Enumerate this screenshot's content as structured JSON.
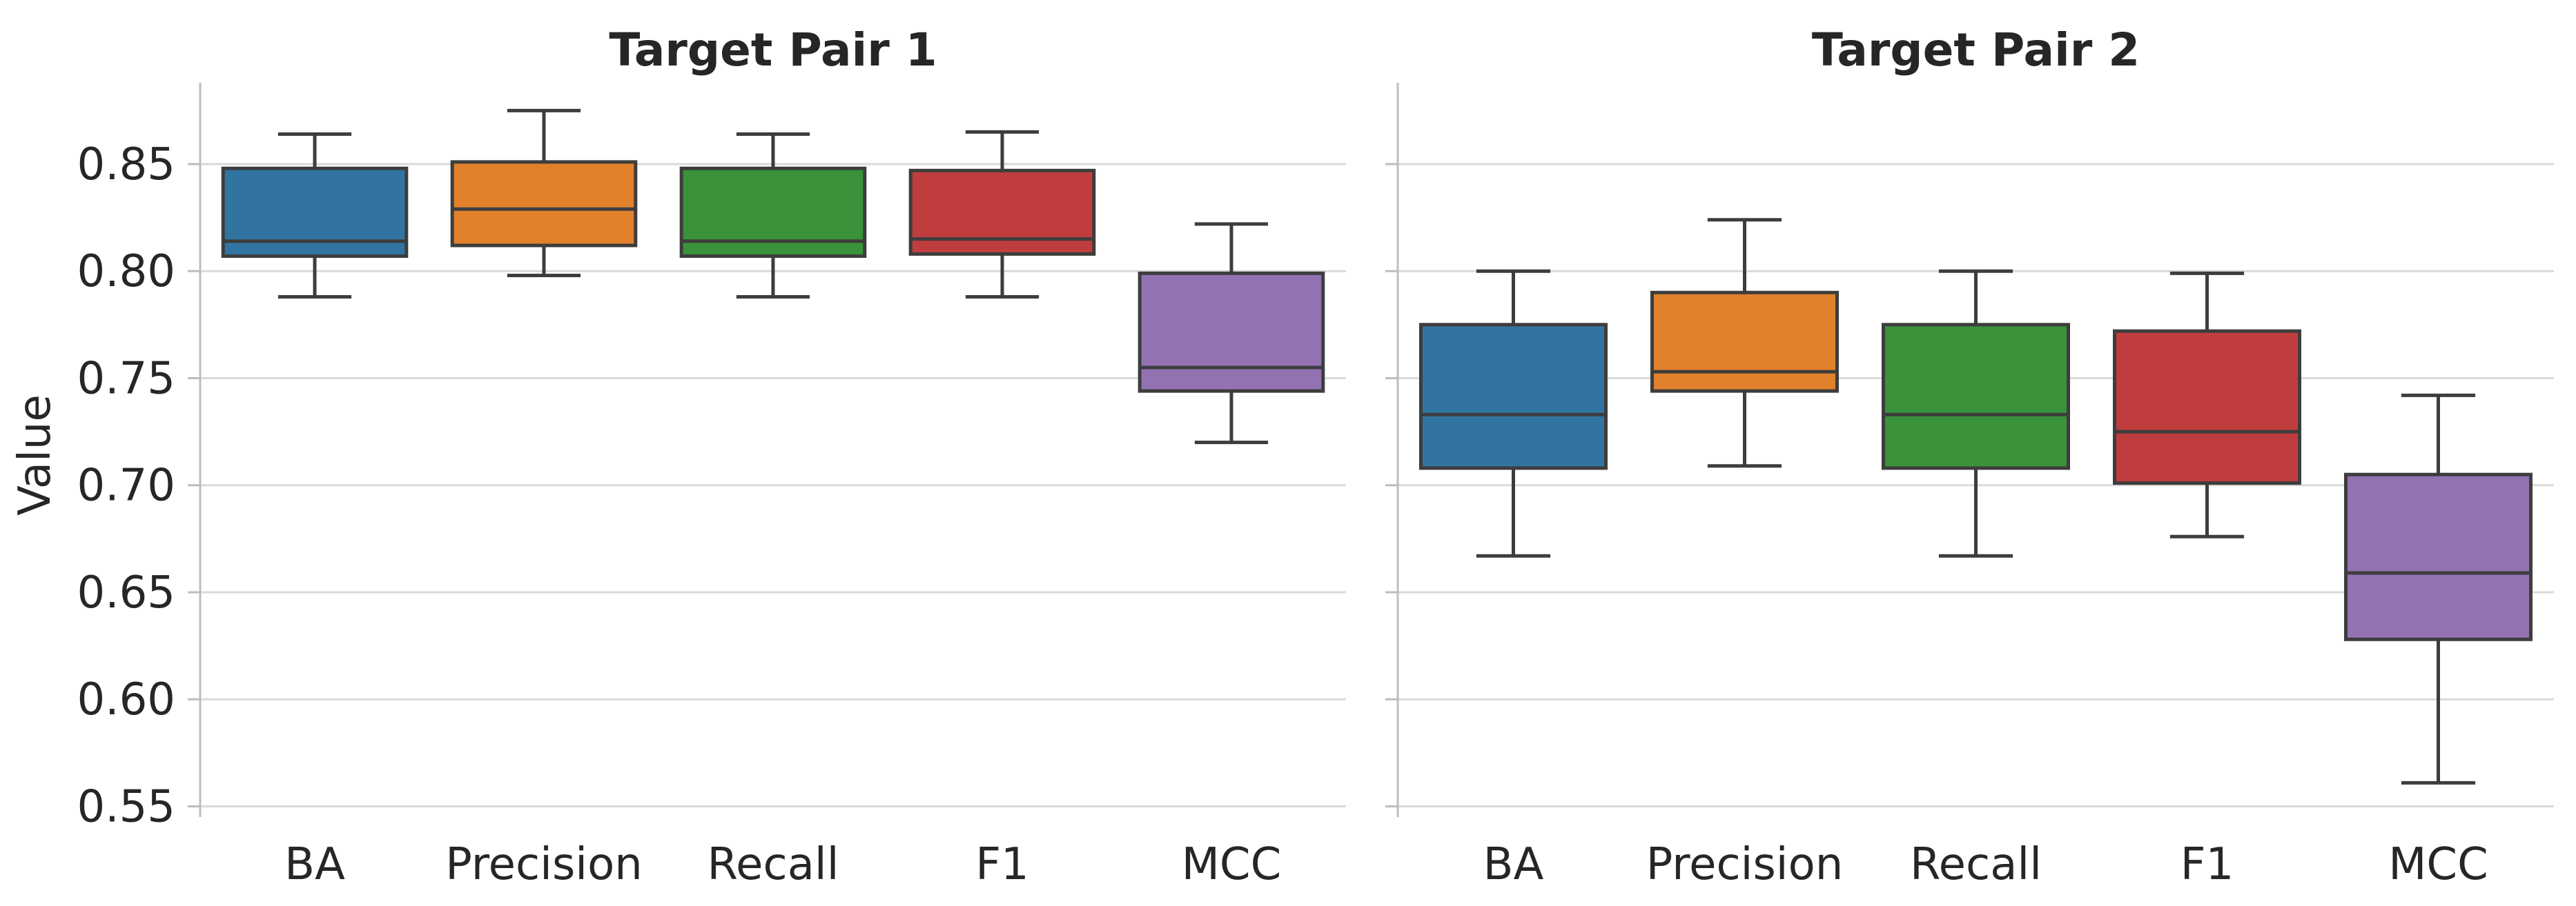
{
  "chart_data": [
    {
      "type": "box",
      "title": "Target Pair 1",
      "ylabel": "Value",
      "xlabel": "",
      "ylim": [
        0.545,
        0.888
      ],
      "yticks": [
        0.55,
        0.6,
        0.65,
        0.7,
        0.75,
        0.8,
        0.85
      ],
      "grid": "horizontal",
      "categories": [
        "BA",
        "Precision",
        "Recall",
        "F1",
        "MCC"
      ],
      "colors": [
        "#3274a1",
        "#e1812c",
        "#3a923a",
        "#c03d3e",
        "#9372b2"
      ],
      "boxes": [
        {
          "category": "BA",
          "whisker_low": 0.788,
          "q1": 0.807,
          "median": 0.814,
          "q3": 0.848,
          "whisker_high": 0.864
        },
        {
          "category": "Precision",
          "whisker_low": 0.798,
          "q1": 0.812,
          "median": 0.829,
          "q3": 0.851,
          "whisker_high": 0.875
        },
        {
          "category": "Recall",
          "whisker_low": 0.788,
          "q1": 0.807,
          "median": 0.814,
          "q3": 0.848,
          "whisker_high": 0.864
        },
        {
          "category": "F1",
          "whisker_low": 0.788,
          "q1": 0.808,
          "median": 0.815,
          "q3": 0.847,
          "whisker_high": 0.865
        },
        {
          "category": "MCC",
          "whisker_low": 0.72,
          "q1": 0.744,
          "median": 0.755,
          "q3": 0.799,
          "whisker_high": 0.822
        }
      ]
    },
    {
      "type": "box",
      "title": "Target Pair 2",
      "ylabel": "",
      "xlabel": "",
      "ylim": [
        0.545,
        0.888
      ],
      "yticks": [
        0.55,
        0.6,
        0.65,
        0.7,
        0.75,
        0.8,
        0.85
      ],
      "grid": "horizontal",
      "categories": [
        "BA",
        "Precision",
        "Recall",
        "F1",
        "MCC"
      ],
      "colors": [
        "#3274a1",
        "#e1812c",
        "#3a923a",
        "#c03d3e",
        "#9372b2"
      ],
      "boxes": [
        {
          "category": "BA",
          "whisker_low": 0.667,
          "q1": 0.708,
          "median": 0.733,
          "q3": 0.775,
          "whisker_high": 0.8
        },
        {
          "category": "Precision",
          "whisker_low": 0.709,
          "q1": 0.744,
          "median": 0.753,
          "q3": 0.79,
          "whisker_high": 0.824
        },
        {
          "category": "Recall",
          "whisker_low": 0.667,
          "q1": 0.708,
          "median": 0.733,
          "q3": 0.775,
          "whisker_high": 0.8
        },
        {
          "category": "F1",
          "whisker_low": 0.676,
          "q1": 0.701,
          "median": 0.725,
          "q3": 0.772,
          "whisker_high": 0.799
        },
        {
          "category": "MCC",
          "whisker_low": 0.561,
          "q1": 0.628,
          "median": 0.659,
          "q3": 0.705,
          "whisker_high": 0.742
        }
      ]
    }
  ]
}
